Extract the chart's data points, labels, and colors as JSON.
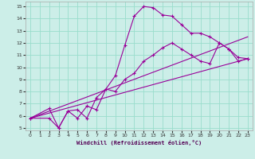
{
  "xlabel": "Windchill (Refroidissement éolien,°C)",
  "background_color": "#cceee8",
  "grid_color": "#99ddcc",
  "line_color": "#990099",
  "xlim": [
    -0.5,
    23.5
  ],
  "ylim": [
    4.8,
    15.4
  ],
  "xticks": [
    0,
    1,
    2,
    3,
    4,
    5,
    6,
    7,
    8,
    9,
    10,
    11,
    12,
    13,
    14,
    15,
    16,
    17,
    18,
    19,
    20,
    21,
    22,
    23
  ],
  "yticks": [
    5,
    6,
    7,
    8,
    9,
    10,
    11,
    12,
    13,
    14,
    15
  ],
  "line1_x": [
    0,
    2,
    3,
    4,
    5,
    6,
    7,
    8,
    9,
    10,
    11,
    12,
    13,
    14,
    15,
    16,
    17,
    18,
    19,
    20,
    21,
    22,
    23
  ],
  "line1_y": [
    5.8,
    6.6,
    5.0,
    6.4,
    5.8,
    6.8,
    6.5,
    8.2,
    9.3,
    11.8,
    14.2,
    15.0,
    14.9,
    14.3,
    14.2,
    13.5,
    12.8,
    12.8,
    12.5,
    12.0,
    11.5,
    10.5,
    10.7
  ],
  "line2_x": [
    0,
    2,
    3,
    4,
    5,
    6,
    7,
    8,
    9,
    10,
    11,
    12,
    13,
    14,
    15,
    16,
    17,
    18,
    19,
    20,
    21,
    22,
    23
  ],
  "line2_y": [
    5.8,
    5.8,
    5.0,
    6.4,
    6.5,
    5.8,
    7.5,
    8.2,
    8.0,
    9.0,
    9.5,
    10.5,
    11.0,
    11.6,
    12.0,
    11.5,
    11.0,
    10.5,
    10.3,
    12.0,
    11.5,
    10.8,
    10.7
  ],
  "line3_x": [
    0,
    23
  ],
  "line3_y": [
    5.8,
    10.7
  ],
  "line4_x": [
    0,
    23
  ],
  "line4_y": [
    5.8,
    12.5
  ]
}
